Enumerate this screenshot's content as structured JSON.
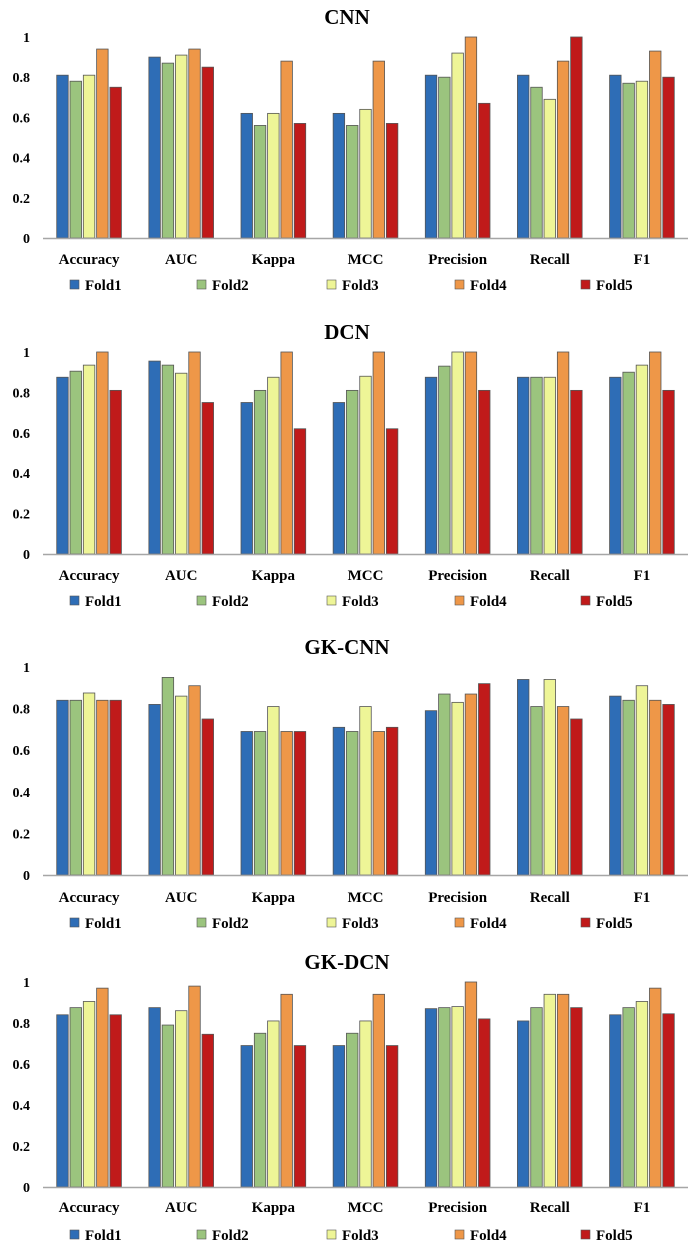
{
  "chart_data": [
    {
      "type": "bar",
      "title": "CNN",
      "categories": [
        "Accuracy",
        "AUC",
        "Kappa",
        "MCC",
        "Precision",
        "Recall",
        "F1"
      ],
      "series": [
        {
          "name": "Fold1",
          "values": [
            0.81,
            0.9,
            0.62,
            0.62,
            0.81,
            0.81,
            0.81
          ]
        },
        {
          "name": "Fold2",
          "values": [
            0.78,
            0.87,
            0.56,
            0.56,
            0.8,
            0.75,
            0.77
          ]
        },
        {
          "name": "Fold3",
          "values": [
            0.81,
            0.91,
            0.62,
            0.64,
            0.92,
            0.69,
            0.78
          ]
        },
        {
          "name": "Fold4",
          "values": [
            0.94,
            0.94,
            0.88,
            0.88,
            1.0,
            0.88,
            0.93
          ]
        },
        {
          "name": "Fold5",
          "values": [
            0.75,
            0.85,
            0.57,
            0.57,
            0.67,
            1.0,
            0.8
          ]
        }
      ],
      "ylim": [
        0,
        1
      ],
      "yticks": [
        "0",
        "0.2",
        "0.4",
        "0.6",
        "0.8",
        "1"
      ],
      "grid": false,
      "legend": "bottom"
    },
    {
      "type": "bar",
      "title": "DCN",
      "categories": [
        "Accuracy",
        "AUC",
        "Kappa",
        "MCC",
        "Precision",
        "Recall",
        "F1"
      ],
      "series": [
        {
          "name": "Fold1",
          "values": [
            0.875,
            0.955,
            0.75,
            0.75,
            0.875,
            0.875,
            0.875
          ]
        },
        {
          "name": "Fold2",
          "values": [
            0.905,
            0.935,
            0.81,
            0.81,
            0.93,
            0.875,
            0.9
          ]
        },
        {
          "name": "Fold3",
          "values": [
            0.935,
            0.895,
            0.875,
            0.88,
            1.0,
            0.875,
            0.935
          ]
        },
        {
          "name": "Fold4",
          "values": [
            1.0,
            1.0,
            1.0,
            1.0,
            1.0,
            1.0,
            1.0
          ]
        },
        {
          "name": "Fold5",
          "values": [
            0.81,
            0.75,
            0.62,
            0.62,
            0.81,
            0.81,
            0.81
          ]
        }
      ],
      "ylim": [
        0,
        1
      ],
      "yticks": [
        "0",
        "0.2",
        "0.4",
        "0.6",
        "0.8",
        "1"
      ],
      "grid": false,
      "legend": "bottom"
    },
    {
      "type": "bar",
      "title": "GK-CNN",
      "categories": [
        "Accuracy",
        "AUC",
        "Kappa",
        "MCC",
        "Precision",
        "Recall",
        "F1"
      ],
      "series": [
        {
          "name": "Fold1",
          "values": [
            0.84,
            0.82,
            0.69,
            0.71,
            0.79,
            0.94,
            0.86
          ]
        },
        {
          "name": "Fold2",
          "values": [
            0.84,
            0.95,
            0.69,
            0.69,
            0.87,
            0.81,
            0.84
          ]
        },
        {
          "name": "Fold3",
          "values": [
            0.875,
            0.86,
            0.81,
            0.81,
            0.83,
            0.94,
            0.91
          ]
        },
        {
          "name": "Fold4",
          "values": [
            0.84,
            0.91,
            0.69,
            0.69,
            0.87,
            0.81,
            0.84
          ]
        },
        {
          "name": "Fold5",
          "values": [
            0.84,
            0.75,
            0.69,
            0.71,
            0.92,
            0.75,
            0.82
          ]
        }
      ],
      "ylim": [
        0,
        1
      ],
      "yticks": [
        "0",
        "0.2",
        "0.4",
        "0.6",
        "0.8",
        "1"
      ],
      "grid": false,
      "legend": "bottom"
    },
    {
      "type": "bar",
      "title": "GK-DCN",
      "categories": [
        "Accuracy",
        "AUC",
        "Kappa",
        "MCC",
        "Precision",
        "Recall",
        "F1"
      ],
      "series": [
        {
          "name": "Fold1",
          "values": [
            0.84,
            0.875,
            0.69,
            0.69,
            0.87,
            0.81,
            0.84
          ]
        },
        {
          "name": "Fold2",
          "values": [
            0.875,
            0.79,
            0.75,
            0.75,
            0.875,
            0.875,
            0.875
          ]
        },
        {
          "name": "Fold3",
          "values": [
            0.905,
            0.86,
            0.81,
            0.81,
            0.88,
            0.94,
            0.905
          ]
        },
        {
          "name": "Fold4",
          "values": [
            0.97,
            0.98,
            0.94,
            0.94,
            1.0,
            0.94,
            0.97
          ]
        },
        {
          "name": "Fold5",
          "values": [
            0.84,
            0.745,
            0.69,
            0.69,
            0.82,
            0.875,
            0.845
          ]
        }
      ],
      "ylim": [
        0,
        1
      ],
      "yticks": [
        "0",
        "0.2",
        "0.4",
        "0.6",
        "0.8",
        "1"
      ],
      "grid": false,
      "legend": "bottom"
    }
  ],
  "colors": {
    "Fold1": "#2e6db6",
    "Fold2": "#9bc47e",
    "Fold3": "#eef597",
    "Fold4": "#ee9748",
    "Fold5": "#c01a1a",
    "axis": "#a6a6a6",
    "outline": "#555555"
  }
}
